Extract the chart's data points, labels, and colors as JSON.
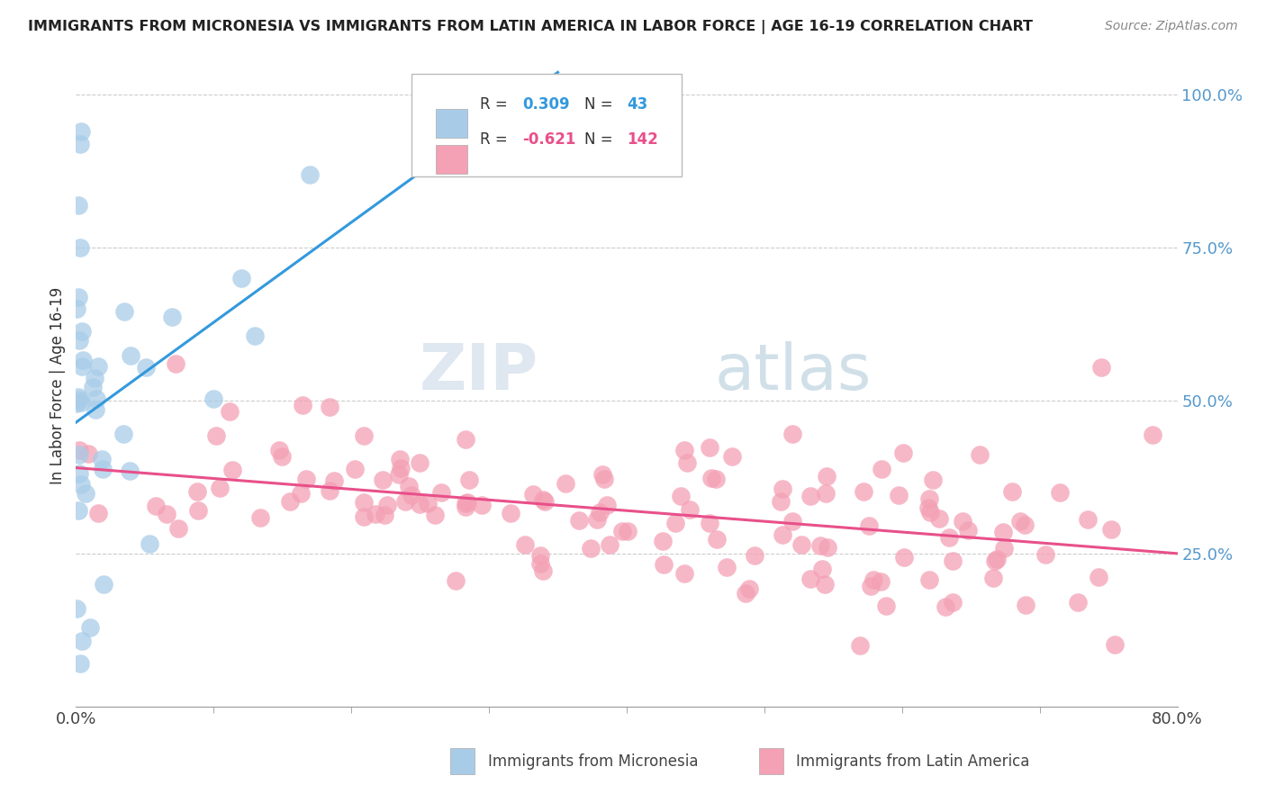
{
  "title": "IMMIGRANTS FROM MICRONESIA VS IMMIGRANTS FROM LATIN AMERICA IN LABOR FORCE | AGE 16-19 CORRELATION CHART",
  "source": "Source: ZipAtlas.com",
  "ylabel": "In Labor Force | Age 16-19",
  "R_micronesia": 0.309,
  "N_micronesia": 43,
  "R_latin": -0.621,
  "N_latin": 142,
  "color_micronesia": "#A8CCE8",
  "color_latin": "#F4A0B5",
  "line_color_micronesia": "#3399DD",
  "line_color_latin": "#E8508A",
  "legend_label_micronesia": "Immigrants from Micronesia",
  "legend_label_latin": "Immigrants from Latin America",
  "watermark_zip": "ZIP",
  "watermark_atlas": "atlas",
  "xlim_min": 0.0,
  "xlim_max": 0.8,
  "ylim_min": 0.0,
  "ylim_max": 1.05,
  "yticks": [
    0.0,
    0.25,
    0.5,
    0.75,
    1.0
  ],
  "ytick_labels": [
    "",
    "25.0%",
    "50.0%",
    "75.0%",
    "100.0%"
  ],
  "xtick_left": "0.0%",
  "xtick_right": "80.0%"
}
